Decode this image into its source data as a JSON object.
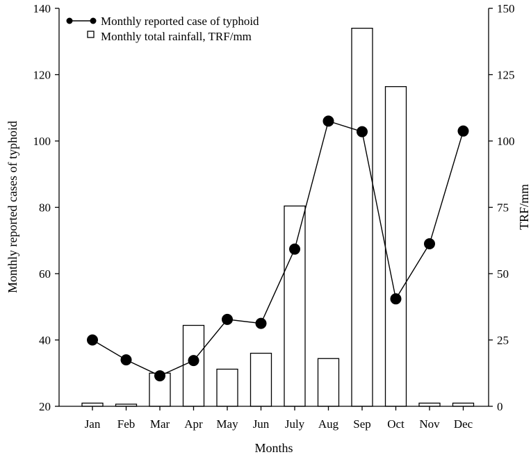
{
  "chart_data": {
    "type": "bar",
    "categories": [
      "Jan",
      "Feb",
      "Mar",
      "Apr",
      "May",
      "Jun",
      "July",
      "Aug",
      "Sep",
      "Oct",
      "Nov",
      "Dec"
    ],
    "xlabel": "Months",
    "ylabel_left": "Monthly reported cases of typhoid",
    "ylabel_right": "TRF/mm",
    "ylim_left": [
      20,
      140
    ],
    "yticks_left": [
      20,
      40,
      60,
      80,
      100,
      120,
      140
    ],
    "ylim_right": [
      0,
      150
    ],
    "yticks_right": [
      0,
      25,
      50,
      75,
      100,
      125,
      150
    ],
    "grid": false,
    "legend_position": "top-left",
    "series": [
      {
        "name": "Monthly reported case of typhoid",
        "type": "line",
        "axis": "left",
        "marker": "filled-circle",
        "color": "#000000",
        "values": [
          40,
          34,
          29.2,
          33.8,
          46.2,
          45,
          67.4,
          106,
          102.8,
          52.4,
          69,
          103
        ]
      },
      {
        "name": "Monthly total rainfall, TRF/mm",
        "type": "bar",
        "axis": "right",
        "color": "#ffffff",
        "values": [
          1.2,
          0.8,
          12.5,
          30.5,
          14,
          20,
          75.5,
          18,
          142.5,
          120.5,
          1.2,
          1.2
        ]
      }
    ]
  }
}
